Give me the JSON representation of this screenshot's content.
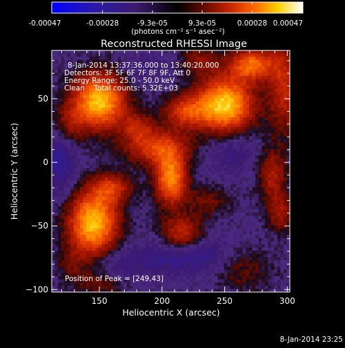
{
  "colorbar": {
    "tick_labels": [
      "-0.00047",
      "-0.00028",
      "-9.3e-05",
      "9.3e-05",
      "0.00028",
      "0.00047"
    ],
    "tick_values": [
      -0.00047,
      -0.00028,
      -9.3e-05,
      9.3e-05,
      0.00028,
      0.00047
    ],
    "units_label": "(photons cm⁻² s⁻¹ asec⁻²)",
    "colors": [
      "#0000ff",
      "#2a1aa8",
      "#3c1a6e",
      "#000000",
      "#5a0a00",
      "#c02000",
      "#ff6000",
      "#ffd000",
      "#ffffff"
    ]
  },
  "chart_data": {
    "type": "heatmap",
    "title": "Reconstructed RHESSI Image",
    "xlabel": "Heliocentric X (arcsec)",
    "ylabel": "Heliocentric Y (arcsec)",
    "xlim": [
      112,
      302
    ],
    "ylim": [
      -102,
      88
    ],
    "xticks": [
      150,
      200,
      250,
      300
    ],
    "xtick_labels": [
      "150",
      "200",
      "250",
      "300"
    ],
    "yticks": [
      -100,
      -50,
      0,
      50
    ],
    "ytick_labels": [
      "−100",
      "−50",
      "0",
      "50"
    ],
    "annotations": [
      "8-Jan-2014 13:37:36.000 to 13:40:20.000",
      "Detectors: 3F 5F 6F 7F 8F 9F, Att 0",
      "Energy Range: 25.0 - 50.0 keV",
      "Clean    Total counts: 5.32E+03"
    ],
    "peak_label": "Position of Peak = [249,43]",
    "peak": [
      249,
      43
    ],
    "sources": [
      {
        "x": 150,
        "y": 48,
        "sx": 15,
        "sy": 15,
        "amp": 0.95
      },
      {
        "x": 250,
        "y": 45,
        "sx": 16,
        "sy": 15,
        "amp": 1.0
      },
      {
        "x": 272,
        "y": 77,
        "sx": 13,
        "sy": 9,
        "amp": 0.7
      },
      {
        "x": 298,
        "y": 58,
        "sx": 9,
        "sy": 25,
        "amp": 0.45
      },
      {
        "x": 145,
        "y": -48,
        "sx": 14,
        "sy": 18,
        "amp": 0.95
      },
      {
        "x": 160,
        "y": -20,
        "sx": 11,
        "sy": 8,
        "amp": 0.45
      },
      {
        "x": 196,
        "y": 12,
        "sx": 18,
        "sy": 10,
        "amp": 0.55
      },
      {
        "x": 207,
        "y": -13,
        "sx": 9,
        "sy": 14,
        "amp": 0.8
      },
      {
        "x": 218,
        "y": 40,
        "sx": 12,
        "sy": 9,
        "amp": 0.5
      },
      {
        "x": 216,
        "y": -58,
        "sx": 12,
        "sy": 11,
        "amp": 0.55
      },
      {
        "x": 237,
        "y": -30,
        "sx": 12,
        "sy": 8,
        "amp": 0.25
      },
      {
        "x": 180,
        "y": 28,
        "sx": 9,
        "sy": 8,
        "amp": 0.35
      },
      {
        "x": 124,
        "y": 28,
        "sx": 10,
        "sy": 12,
        "amp": 0.35
      },
      {
        "x": 128,
        "y": -80,
        "sx": 8,
        "sy": 8,
        "amp": 0.2
      },
      {
        "x": 288,
        "y": -10,
        "sx": 8,
        "sy": 14,
        "amp": 0.4
      },
      {
        "x": 295,
        "y": -40,
        "sx": 8,
        "sy": 10,
        "amp": 0.35
      },
      {
        "x": 265,
        "y": -85,
        "sx": 16,
        "sy": 12,
        "amp": 0.2
      },
      {
        "x": 150,
        "y": -95,
        "sx": 15,
        "sy": 6,
        "amp": 0.25
      },
      {
        "x": 230,
        "y": 80,
        "sx": 10,
        "sy": 8,
        "amp": 0.3
      }
    ],
    "negatives": [
      {
        "x": 118,
        "y": 5,
        "sx": 10,
        "sy": 20,
        "amp": 0.35
      },
      {
        "x": 220,
        "y": -72,
        "sx": 20,
        "sy": 10,
        "amp": 0.4
      },
      {
        "x": 255,
        "y": 8,
        "sx": 14,
        "sy": 12,
        "amp": 0.2
      },
      {
        "x": 170,
        "y": -80,
        "sx": 18,
        "sy": 10,
        "amp": 0.2
      },
      {
        "x": 185,
        "y": 75,
        "sx": 12,
        "sy": 8,
        "amp": 0.15
      }
    ],
    "background": -0.12
  },
  "footer": {
    "timestamp": "8-Jan-2014 23:25"
  }
}
